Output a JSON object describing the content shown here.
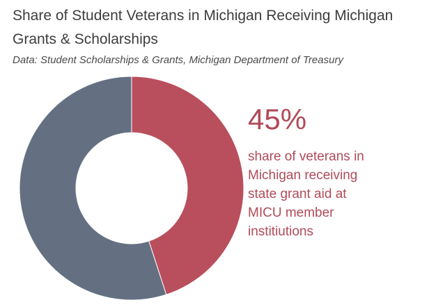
{
  "title": "Share of Student Veterans in Michigan Receiving Michigan Grants & Scholarships",
  "subtitle": "Data: Student Scholarships & Grants, Michigan Department of Treasury",
  "highlight": {
    "value": "45%",
    "caption": "share of veterans in\nMichigan receiving\nstate grant aid at\nMICU member\ninstitiutions"
  },
  "chart_data": {
    "type": "pie",
    "title": "Share of Student Veterans in Michigan Receiving Michigan Grants & Scholarships",
    "slices": [
      {
        "value": 45,
        "color": "#b94f5c"
      },
      {
        "value": 55,
        "color": "#647082"
      }
    ],
    "donut": true
  }
}
